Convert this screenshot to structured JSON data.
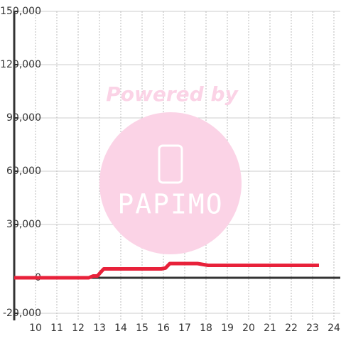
{
  "chart_data": {
    "type": "line",
    "x": [
      9,
      12.5,
      12.7,
      12.9,
      13.2,
      15.9,
      16.1,
      16.3,
      17.6,
      18.1,
      23.3
    ],
    "series": [
      {
        "color": "#e8213a",
        "values": [
          0,
          0,
          1000,
          1000,
          5000,
          5000,
          5500,
          8000,
          8000,
          7000,
          7000
        ]
      }
    ],
    "xlim": [
      9,
      24.3
    ],
    "xticks": [
      10,
      11,
      12,
      13,
      14,
      15,
      16,
      17,
      18,
      19,
      20,
      21,
      22,
      23,
      24
    ],
    "ylim": [
      -24000,
      150000
    ],
    "yticks": [
      {
        "value": -20000,
        "label": "-20,000"
      },
      0,
      {
        "value": 30000,
        "label": "30,000"
      },
      {
        "value": 60000,
        "label": "60,000"
      },
      {
        "value": 90000,
        "label": "90,000"
      },
      {
        "value": 120000,
        "label": "120,000"
      },
      {
        "value": 150000,
        "label": "150,000"
      }
    ],
    "grid": true,
    "watermark": {
      "line1": "Powered by",
      "line2": "PAPIMO"
    }
  }
}
